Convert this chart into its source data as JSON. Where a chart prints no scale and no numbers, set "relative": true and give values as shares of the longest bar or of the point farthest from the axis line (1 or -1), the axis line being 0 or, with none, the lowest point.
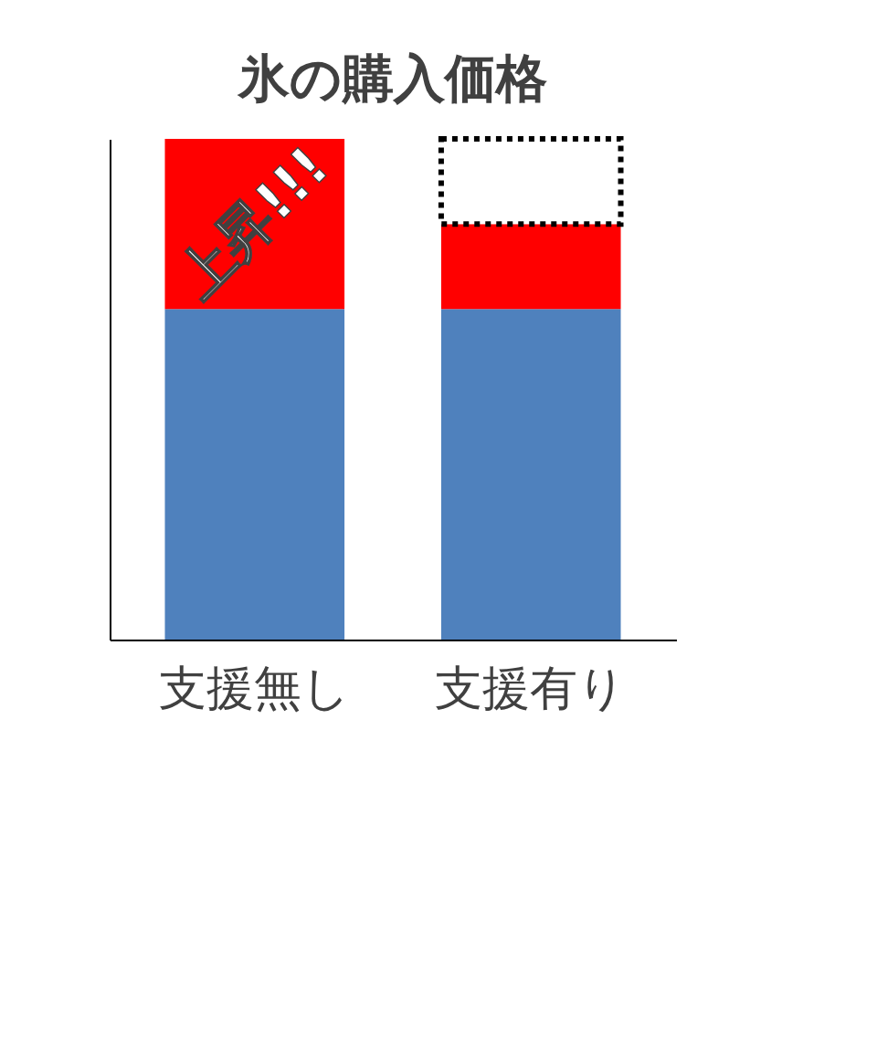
{
  "chart_data": {
    "type": "bar",
    "title": "氷の購入価格",
    "categories": [
      "支援無し",
      "支援有り"
    ],
    "stacked": true,
    "relative": true,
    "tick_labels": "x",
    "grid": false,
    "series": [
      {
        "color": "#4f81bd",
        "values": [
          0.66,
          0.66
        ]
      },
      {
        "color": "#ff0000",
        "values": [
          0.34,
          0.17
        ]
      },
      {
        "color": "#ffffff",
        "values": [
          null,
          0.17
        ],
        "line_style": "dotted"
      }
    ],
    "annotations": [
      "上昇!!!"
    ]
  }
}
